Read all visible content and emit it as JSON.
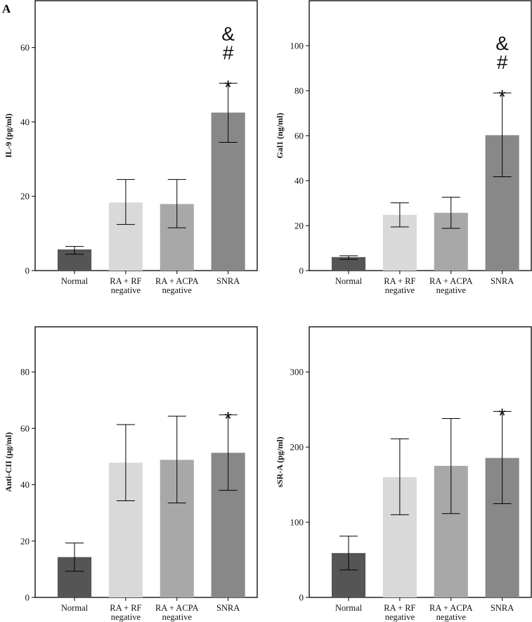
{
  "figure": {
    "panel_letter": "A"
  },
  "chart_data": [
    {
      "type": "bar",
      "title": "",
      "xlabel": "",
      "ylabel": "IL-9 (pg/ml)",
      "categories": [
        [
          "Normal"
        ],
        [
          "RA + RF",
          "negative"
        ],
        [
          "RA + ACPA",
          "negative"
        ],
        [
          "SNRA"
        ]
      ],
      "values": [
        5.7,
        18.3,
        17.9,
        42.5
      ],
      "error_upper": [
        6.5,
        24.5,
        24.5,
        50.4
      ],
      "error_lower": [
        4.4,
        12.4,
        11.5,
        34.5
      ],
      "colors": [
        "#555555",
        "#d9d9d9",
        "#a8a8a8",
        "#888888"
      ],
      "yticks": [
        0,
        20,
        40,
        60
      ],
      "ylim": [
        0,
        72.6
      ],
      "annotations": [
        {
          "category_index": 3,
          "lines": [
            "&",
            "#",
            "*"
          ]
        }
      ],
      "grid": false,
      "legend": "none"
    },
    {
      "type": "bar",
      "title": "",
      "xlabel": "",
      "ylabel": "Gal1 (ng/ml)",
      "categories": [
        [
          "Normal"
        ],
        [
          "RA + RF",
          "negative"
        ],
        [
          "RA + ACPA",
          "negative"
        ],
        [
          "SNRA"
        ]
      ],
      "values": [
        6.0,
        24.8,
        25.7,
        60.2
      ],
      "error_upper": [
        6.6,
        30.1,
        32.6,
        79.0
      ],
      "error_lower": [
        5.0,
        19.4,
        18.8,
        41.7
      ],
      "colors": [
        "#555555",
        "#d9d9d9",
        "#a8a8a8",
        "#888888"
      ],
      "yticks": [
        0,
        20,
        40,
        60,
        80,
        100
      ],
      "ylim": [
        0,
        120
      ],
      "annotations": [
        {
          "category_index": 3,
          "lines": [
            "&",
            "#",
            "*"
          ]
        }
      ],
      "grid": false,
      "legend": "none"
    },
    {
      "type": "bar",
      "title": "",
      "xlabel": "",
      "ylabel": "Anti-CII (μg/ml)",
      "categories": [
        [
          "Normal"
        ],
        [
          "RA + RF",
          "negative"
        ],
        [
          "RA + ACPA",
          "negative"
        ],
        [
          "SNRA"
        ]
      ],
      "values": [
        14.3,
        47.8,
        48.8,
        51.3
      ],
      "error_upper": [
        19.3,
        61.3,
        64.3,
        64.8
      ],
      "error_lower": [
        9.3,
        34.3,
        33.5,
        38.0
      ],
      "colors": [
        "#555555",
        "#d9d9d9",
        "#a8a8a8",
        "#888888"
      ],
      "yticks": [
        0,
        20,
        40,
        60,
        80
      ],
      "ylim": [
        0,
        96
      ],
      "annotations": [
        {
          "category_index": 3,
          "lines": [
            "*"
          ]
        }
      ],
      "grid": false,
      "legend": "none"
    },
    {
      "type": "bar",
      "title": "",
      "xlabel": "",
      "ylabel": "sSR-A (pg/ml)",
      "categories": [
        [
          "Normal"
        ],
        [
          "RA + RF",
          "negative"
        ],
        [
          "RA + ACPA",
          "negative"
        ],
        [
          "SNRA"
        ]
      ],
      "values": [
        59,
        160,
        175,
        185.5
      ],
      "error_upper": [
        81.5,
        211,
        238,
        247.5
      ],
      "error_lower": [
        36.6,
        110,
        111.5,
        124.7
      ],
      "colors": [
        "#555555",
        "#d9d9d9",
        "#a8a8a8",
        "#888888"
      ],
      "yticks": [
        0,
        100,
        200,
        300
      ],
      "ylim": [
        0,
        360
      ],
      "annotations": [
        {
          "category_index": 3,
          "lines": [
            "*"
          ]
        }
      ],
      "grid": false,
      "legend": "none"
    }
  ]
}
